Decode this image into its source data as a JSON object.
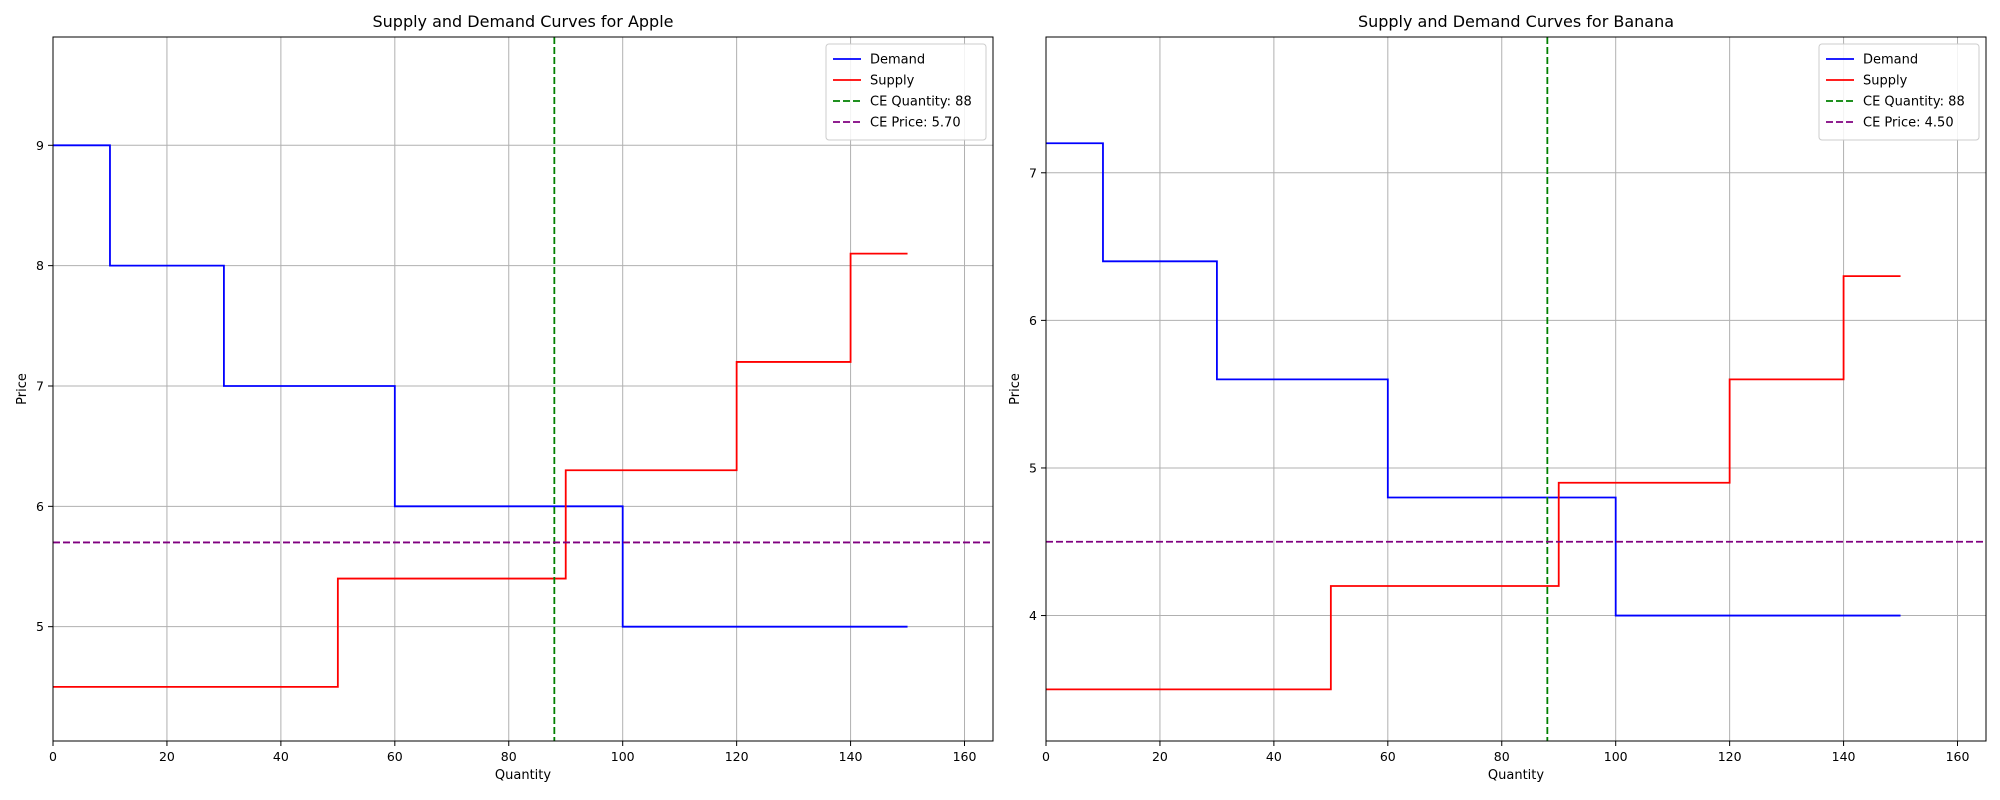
{
  "chart_data": [
    {
      "type": "line",
      "step": "post",
      "title": "Supply and Demand Curves for Apple",
      "xlabel": "Quantity",
      "ylabel": "Price",
      "xlim": [
        0,
        165
      ],
      "ylim": [
        4.05,
        9.9
      ],
      "xticks": [
        0,
        20,
        40,
        60,
        80,
        100,
        120,
        140,
        160
      ],
      "yticks": [
        5,
        6,
        7,
        8,
        9
      ],
      "grid": true,
      "legend_position": "top-right",
      "series": [
        {
          "name": "Demand",
          "color": "#0000ff",
          "style": "solid",
          "x": [
            0,
            10,
            30,
            60,
            100,
            150
          ],
          "y": [
            9.0,
            8.0,
            7.0,
            6.0,
            5.0,
            5.0
          ]
        },
        {
          "name": "Supply",
          "color": "#ff0000",
          "style": "solid",
          "x": [
            0,
            50,
            90,
            120,
            140,
            150
          ],
          "y": [
            4.5,
            5.4,
            6.3,
            7.2,
            8.1,
            8.1
          ]
        }
      ],
      "reference_lines": [
        {
          "name": "CE Quantity: 88",
          "orientation": "vertical",
          "value": 88,
          "color": "#008000",
          "style": "dashed"
        },
        {
          "name": "CE Price: 5.70",
          "orientation": "horizontal",
          "value": 5.7,
          "color": "#800080",
          "style": "dashed"
        }
      ]
    },
    {
      "type": "line",
      "step": "post",
      "title": "Supply and Demand Curves for Banana",
      "xlabel": "Quantity",
      "ylabel": "Price",
      "xlim": [
        0,
        165
      ],
      "ylim": [
        3.15,
        7.92
      ],
      "xticks": [
        0,
        20,
        40,
        60,
        80,
        100,
        120,
        140,
        160
      ],
      "yticks": [
        4,
        5,
        6,
        7
      ],
      "grid": true,
      "legend_position": "top-right",
      "series": [
        {
          "name": "Demand",
          "color": "#0000ff",
          "style": "solid",
          "x": [
            0,
            10,
            30,
            60,
            100,
            150
          ],
          "y": [
            7.2,
            6.4,
            5.6,
            4.8,
            4.0,
            4.0
          ]
        },
        {
          "name": "Supply",
          "color": "#ff0000",
          "style": "solid",
          "x": [
            0,
            50,
            90,
            120,
            140,
            150
          ],
          "y": [
            3.5,
            4.2,
            4.9,
            5.6,
            6.3,
            6.3
          ]
        }
      ],
      "reference_lines": [
        {
          "name": "CE Quantity: 88",
          "orientation": "vertical",
          "value": 88,
          "color": "#008000",
          "style": "dashed"
        },
        {
          "name": "CE Price: 4.50",
          "orientation": "horizontal",
          "value": 4.5,
          "color": "#800080",
          "style": "dashed"
        }
      ]
    }
  ]
}
